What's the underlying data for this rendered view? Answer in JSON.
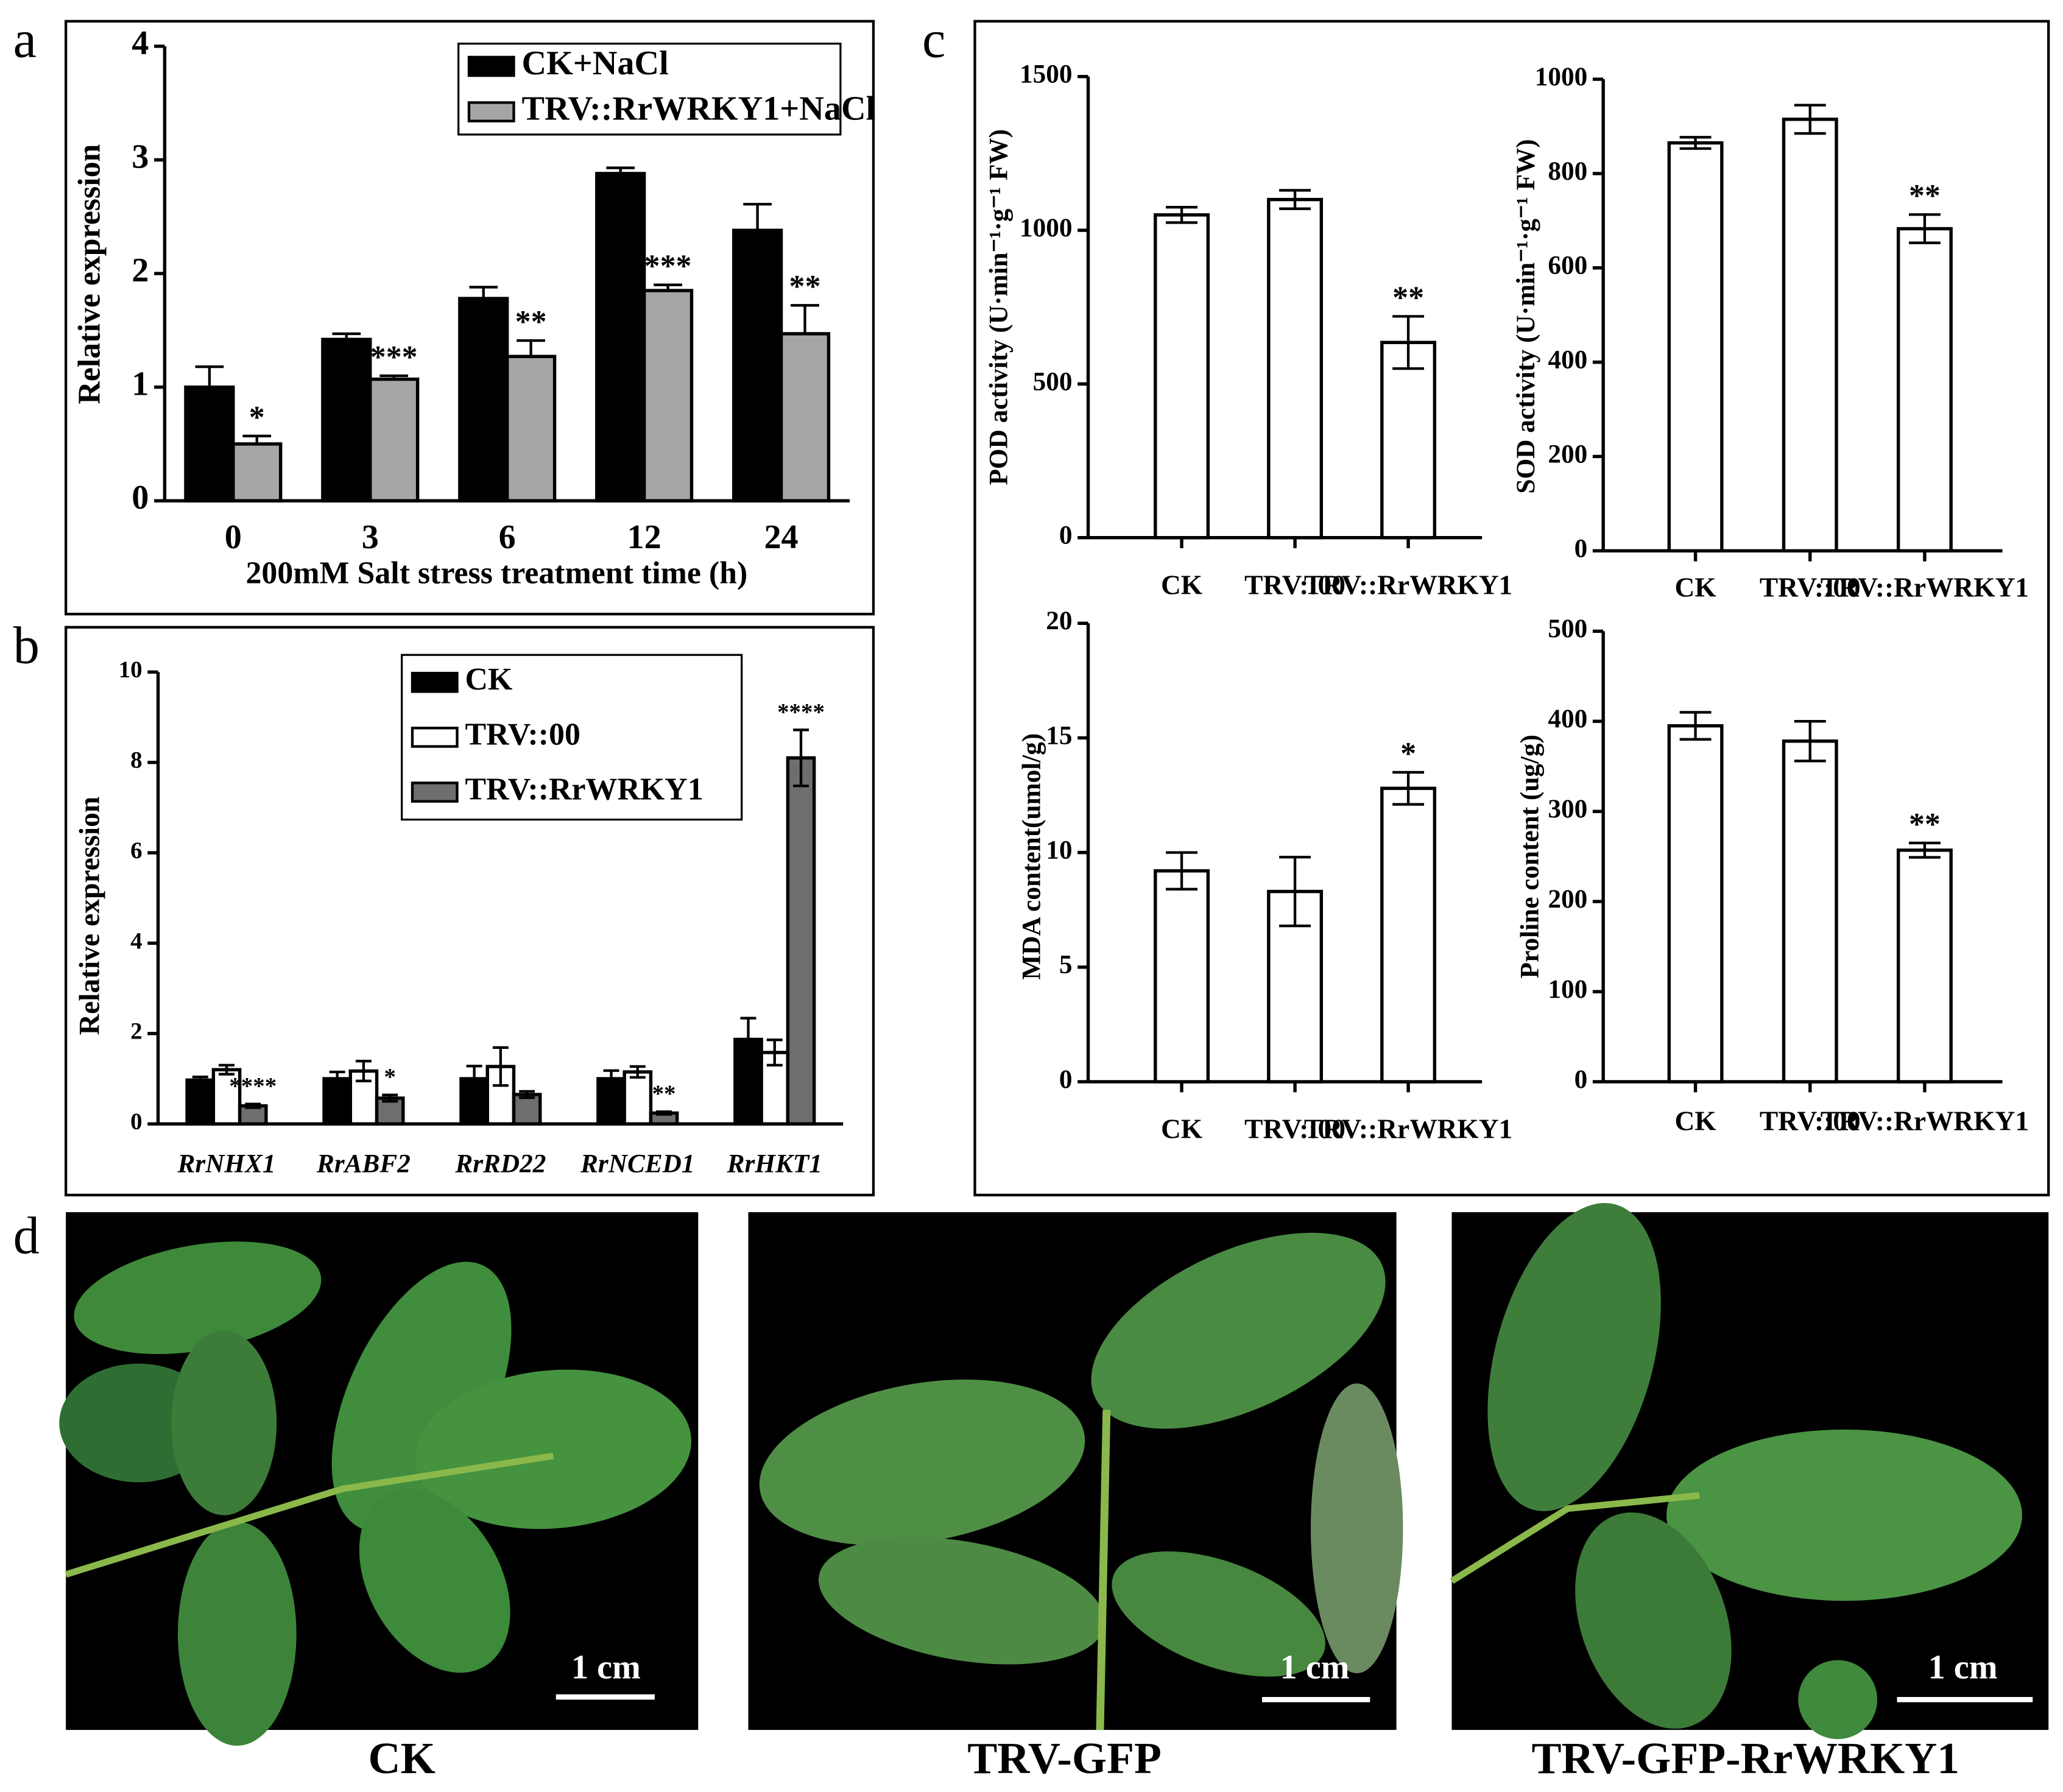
{
  "chart_data": [
    {
      "type": "bar",
      "panel": "a",
      "x_label": "200mM Salt stress treatment time (h)",
      "y_label": "Relative expression",
      "categories": [
        "0",
        "3",
        "6",
        "12",
        "24"
      ],
      "ylim": [
        0,
        4
      ],
      "yticks": [
        0,
        1,
        2,
        3,
        4
      ],
      "series": [
        {
          "name": "CK+NaCl",
          "color": "#000000",
          "values": [
            1.0,
            1.42,
            1.78,
            2.88,
            2.38
          ],
          "errors": [
            0.18,
            0.05,
            0.1,
            0.05,
            0.23
          ],
          "annotations": [
            null,
            null,
            null,
            null,
            null
          ]
        },
        {
          "name": "TRV::RrWRKY1+NaCl",
          "color": "#a6a6a6",
          "values": [
            0.5,
            1.07,
            1.27,
            1.85,
            1.47
          ],
          "errors": [
            0.07,
            0.03,
            0.14,
            0.05,
            0.25
          ],
          "annotations": [
            "*",
            "***",
            "**",
            "***",
            "**"
          ]
        }
      ]
    },
    {
      "type": "bar",
      "panel": "b",
      "y_label": "Relative expression",
      "categories": [
        "RrNHX1",
        "RrABF2",
        "RrRD22",
        "RrNCED1",
        "RrHKT1"
      ],
      "ylim": [
        0,
        10
      ],
      "yticks": [
        0,
        2,
        4,
        6,
        8,
        10
      ],
      "series": [
        {
          "name": "CK",
          "color": "#000000",
          "values": [
            0.97,
            1.0,
            1.0,
            1.0,
            1.87
          ],
          "errors": [
            0.07,
            0.15,
            0.28,
            0.18,
            0.47
          ],
          "annotations": [
            null,
            null,
            null,
            null,
            null
          ]
        },
        {
          "name": "TRV::00",
          "color": "#ffffff",
          "values": [
            1.2,
            1.17,
            1.27,
            1.15,
            1.58
          ],
          "errors": [
            0.1,
            0.22,
            0.42,
            0.12,
            0.28
          ],
          "annotations": [
            null,
            null,
            null,
            null,
            null
          ]
        },
        {
          "name": "TRV::RrWRKY1",
          "color": "#6e6e6e",
          "values": [
            0.4,
            0.57,
            0.65,
            0.24,
            8.1
          ],
          "errors": [
            0.04,
            0.07,
            0.07,
            0.03,
            0.62
          ],
          "annotations": [
            "****",
            "*",
            null,
            "**",
            "****"
          ]
        }
      ]
    },
    {
      "type": "bar",
      "panel": "c",
      "y_label": "POD activity (U·min⁻¹·g⁻¹ FW)",
      "categories": [
        "CK",
        "TRV::00",
        "TRV::RrWRKY1"
      ],
      "ylim": [
        0,
        1500
      ],
      "yticks": [
        0,
        500,
        1000,
        1500
      ],
      "color": "#ffffff",
      "values": [
        1050,
        1100,
        635
      ],
      "errors": [
        25,
        30,
        85
      ],
      "annotations": [
        null,
        null,
        "**"
      ]
    },
    {
      "type": "bar",
      "y_label": "SOD activity (U·min⁻¹·g⁻¹ FW)",
      "categories": [
        "CK",
        "TRV::00",
        "TRV::RrWRKY1"
      ],
      "ylim": [
        0,
        1000
      ],
      "yticks": [
        0,
        200,
        400,
        600,
        800,
        1000
      ],
      "color": "#ffffff",
      "values": [
        865,
        915,
        683
      ],
      "errors": [
        12,
        30,
        30
      ],
      "annotations": [
        null,
        null,
        "**"
      ]
    },
    {
      "type": "bar",
      "y_label": "MDA content(umol/g)",
      "categories": [
        "CK",
        "TRV::00",
        "TRV::RrWRKY1"
      ],
      "ylim": [
        0,
        20
      ],
      "yticks": [
        0,
        5,
        10,
        15,
        20
      ],
      "color": "#ffffff",
      "values": [
        9.2,
        8.3,
        12.8
      ],
      "errors": [
        0.8,
        1.5,
        0.7
      ],
      "annotations": [
        null,
        null,
        "*"
      ]
    },
    {
      "type": "bar",
      "y_label": "Proline content (ug/g)",
      "categories": [
        "CK",
        "TRV::00",
        "TRV::RrWRKY1"
      ],
      "ylim": [
        0,
        500
      ],
      "yticks": [
        0,
        100,
        200,
        300,
        400,
        500
      ],
      "color": "#ffffff",
      "values": [
        395,
        378,
        257
      ],
      "errors": [
        15,
        22,
        8
      ],
      "annotations": [
        null,
        null,
        "**"
      ]
    }
  ],
  "photos": {
    "panel": "d",
    "images": [
      {
        "caption": "CK",
        "scale_bar": "1 cm"
      },
      {
        "caption": "TRV-GFP",
        "scale_bar": "1 cm"
      },
      {
        "caption": "TRV-GFP-RrWRKY1",
        "scale_bar": "1 cm"
      }
    ]
  }
}
